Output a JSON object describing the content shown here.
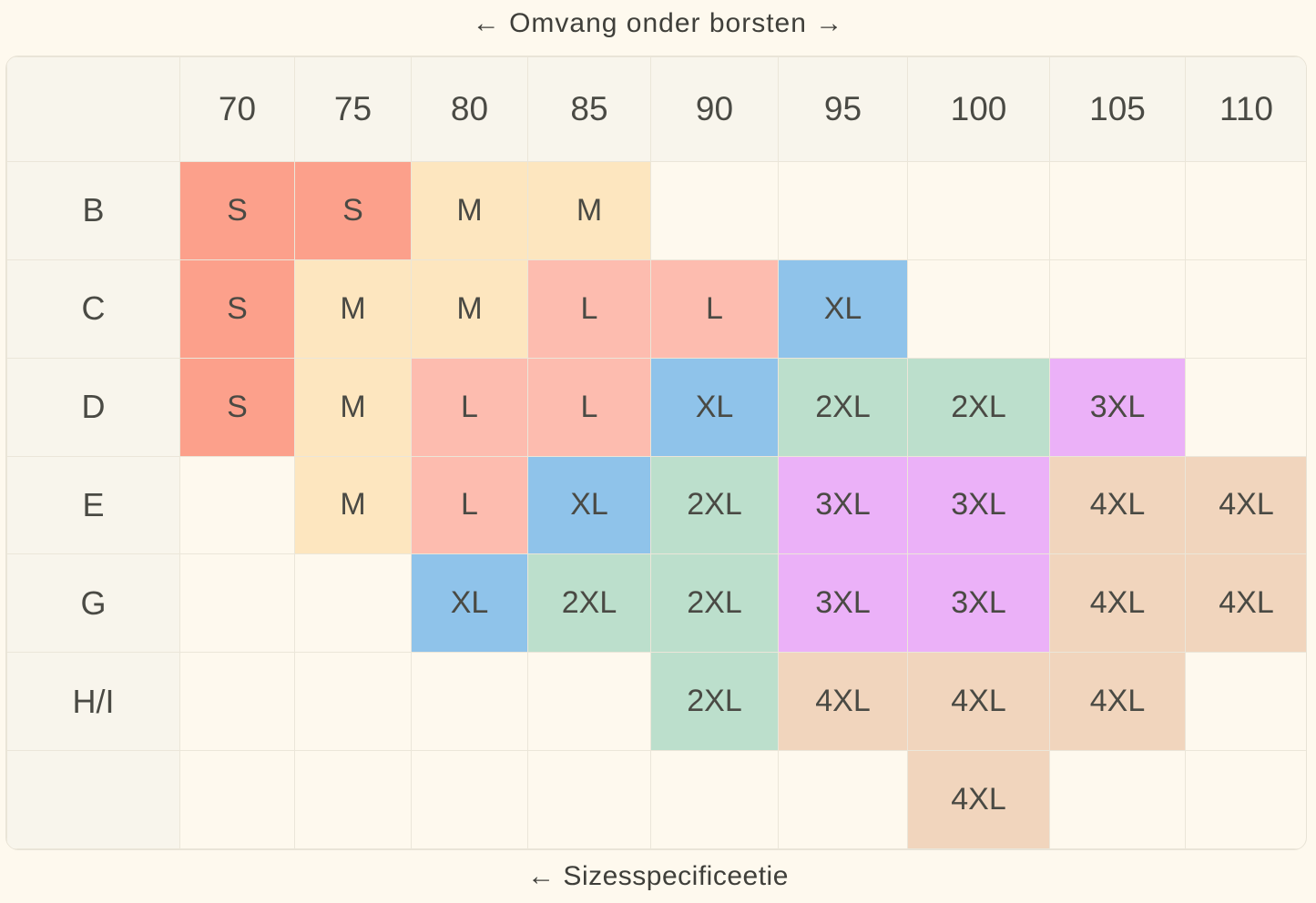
{
  "top_axis_label": "← Omvang onder borsten →",
  "bottom_axis_label": "← Sizesspecificeetie",
  "columns": [
    "70",
    "75",
    "80",
    "85",
    "90",
    "95",
    "100",
    "105",
    "110"
  ],
  "rows": [
    {
      "label": "B",
      "cells": [
        "S",
        "S",
        "M",
        "M",
        "",
        "",
        "",
        "",
        ""
      ]
    },
    {
      "label": "C",
      "cells": [
        "S",
        "M",
        "M",
        "L",
        "L",
        "XL",
        "",
        "",
        ""
      ]
    },
    {
      "label": "D",
      "cells": [
        "S",
        "M",
        "L",
        "L",
        "XL",
        "2XL",
        "2XL",
        "3XL",
        ""
      ]
    },
    {
      "label": "E",
      "cells": [
        "",
        "M",
        "L",
        "XL",
        "2XL",
        "3XL",
        "3XL",
        "4XL",
        "4XL"
      ]
    },
    {
      "label": "G",
      "cells": [
        "",
        "",
        "XL",
        "2XL",
        "2XL",
        "3XL",
        "3XL",
        "4XL",
        "4XL"
      ]
    },
    {
      "label": "H/I",
      "cells": [
        "",
        "",
        "",
        "",
        "2XL",
        "4XL",
        "4XL",
        "4XL",
        ""
      ]
    },
    {
      "label": "",
      "cells": [
        "",
        "",
        "",
        "",
        "",
        "",
        "4XL",
        "",
        ""
      ]
    }
  ],
  "size_colors": {
    "S": "#fca08b",
    "M": "#fde6bf",
    "L": "#fdbcaf",
    "XL": "#8fc3ea",
    "2XL": "#bcdfcc",
    "3XL": "#ebb1f8",
    "4XL": "#f1d5bd"
  }
}
